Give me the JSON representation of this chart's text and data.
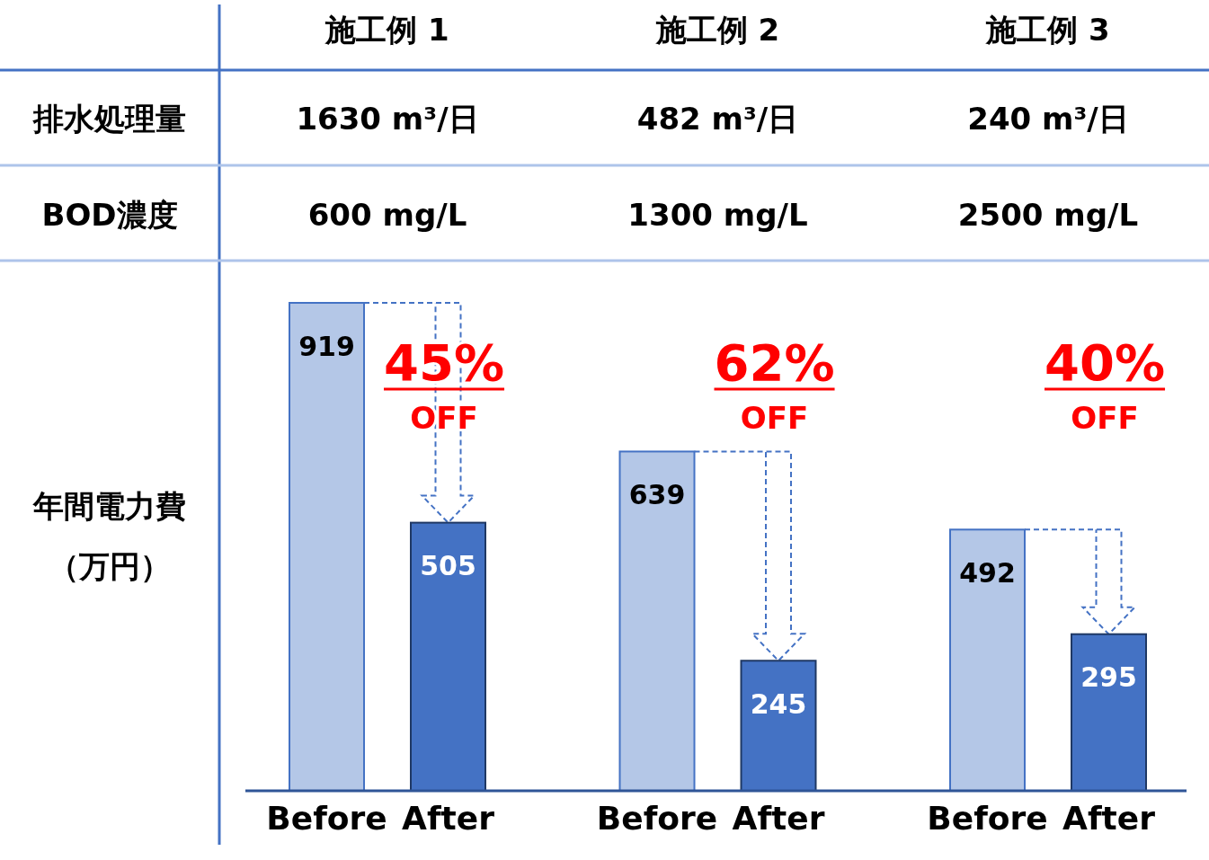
{
  "chart_data": [
    {
      "type": "other",
      "annotations": [
        "排水処理量",
        "BOD濃度",
        "年間電力費（万円）"
      ]
    },
    {
      "type": "bar",
      "title": "施工例 1",
      "categories": [
        "Before",
        "After"
      ],
      "values": [
        919,
        505
      ],
      "colors": [
        "#b4c7e7",
        "#4472c4"
      ],
      "data_labels": true,
      "annotations": [
        "1630 m³/日",
        "600 mg/L",
        "45%",
        "OFF"
      ]
    },
    {
      "type": "bar",
      "title": "施工例 2",
      "categories": [
        "Before",
        "After"
      ],
      "values": [
        639,
        245
      ],
      "colors": [
        "#b4c7e7",
        "#4472c4"
      ],
      "data_labels": true,
      "annotations": [
        "482 m³/日",
        "1300 mg/L",
        "62%",
        "OFF"
      ]
    },
    {
      "type": "bar",
      "title": "施工例 3",
      "categories": [
        "Before",
        "After"
      ],
      "values": [
        492,
        295
      ],
      "colors": [
        "#b4c7e7",
        "#4472c4"
      ],
      "data_labels": true,
      "annotations": [
        "240 m³/日",
        "2500 mg/L",
        "40%",
        "OFF"
      ]
    }
  ]
}
